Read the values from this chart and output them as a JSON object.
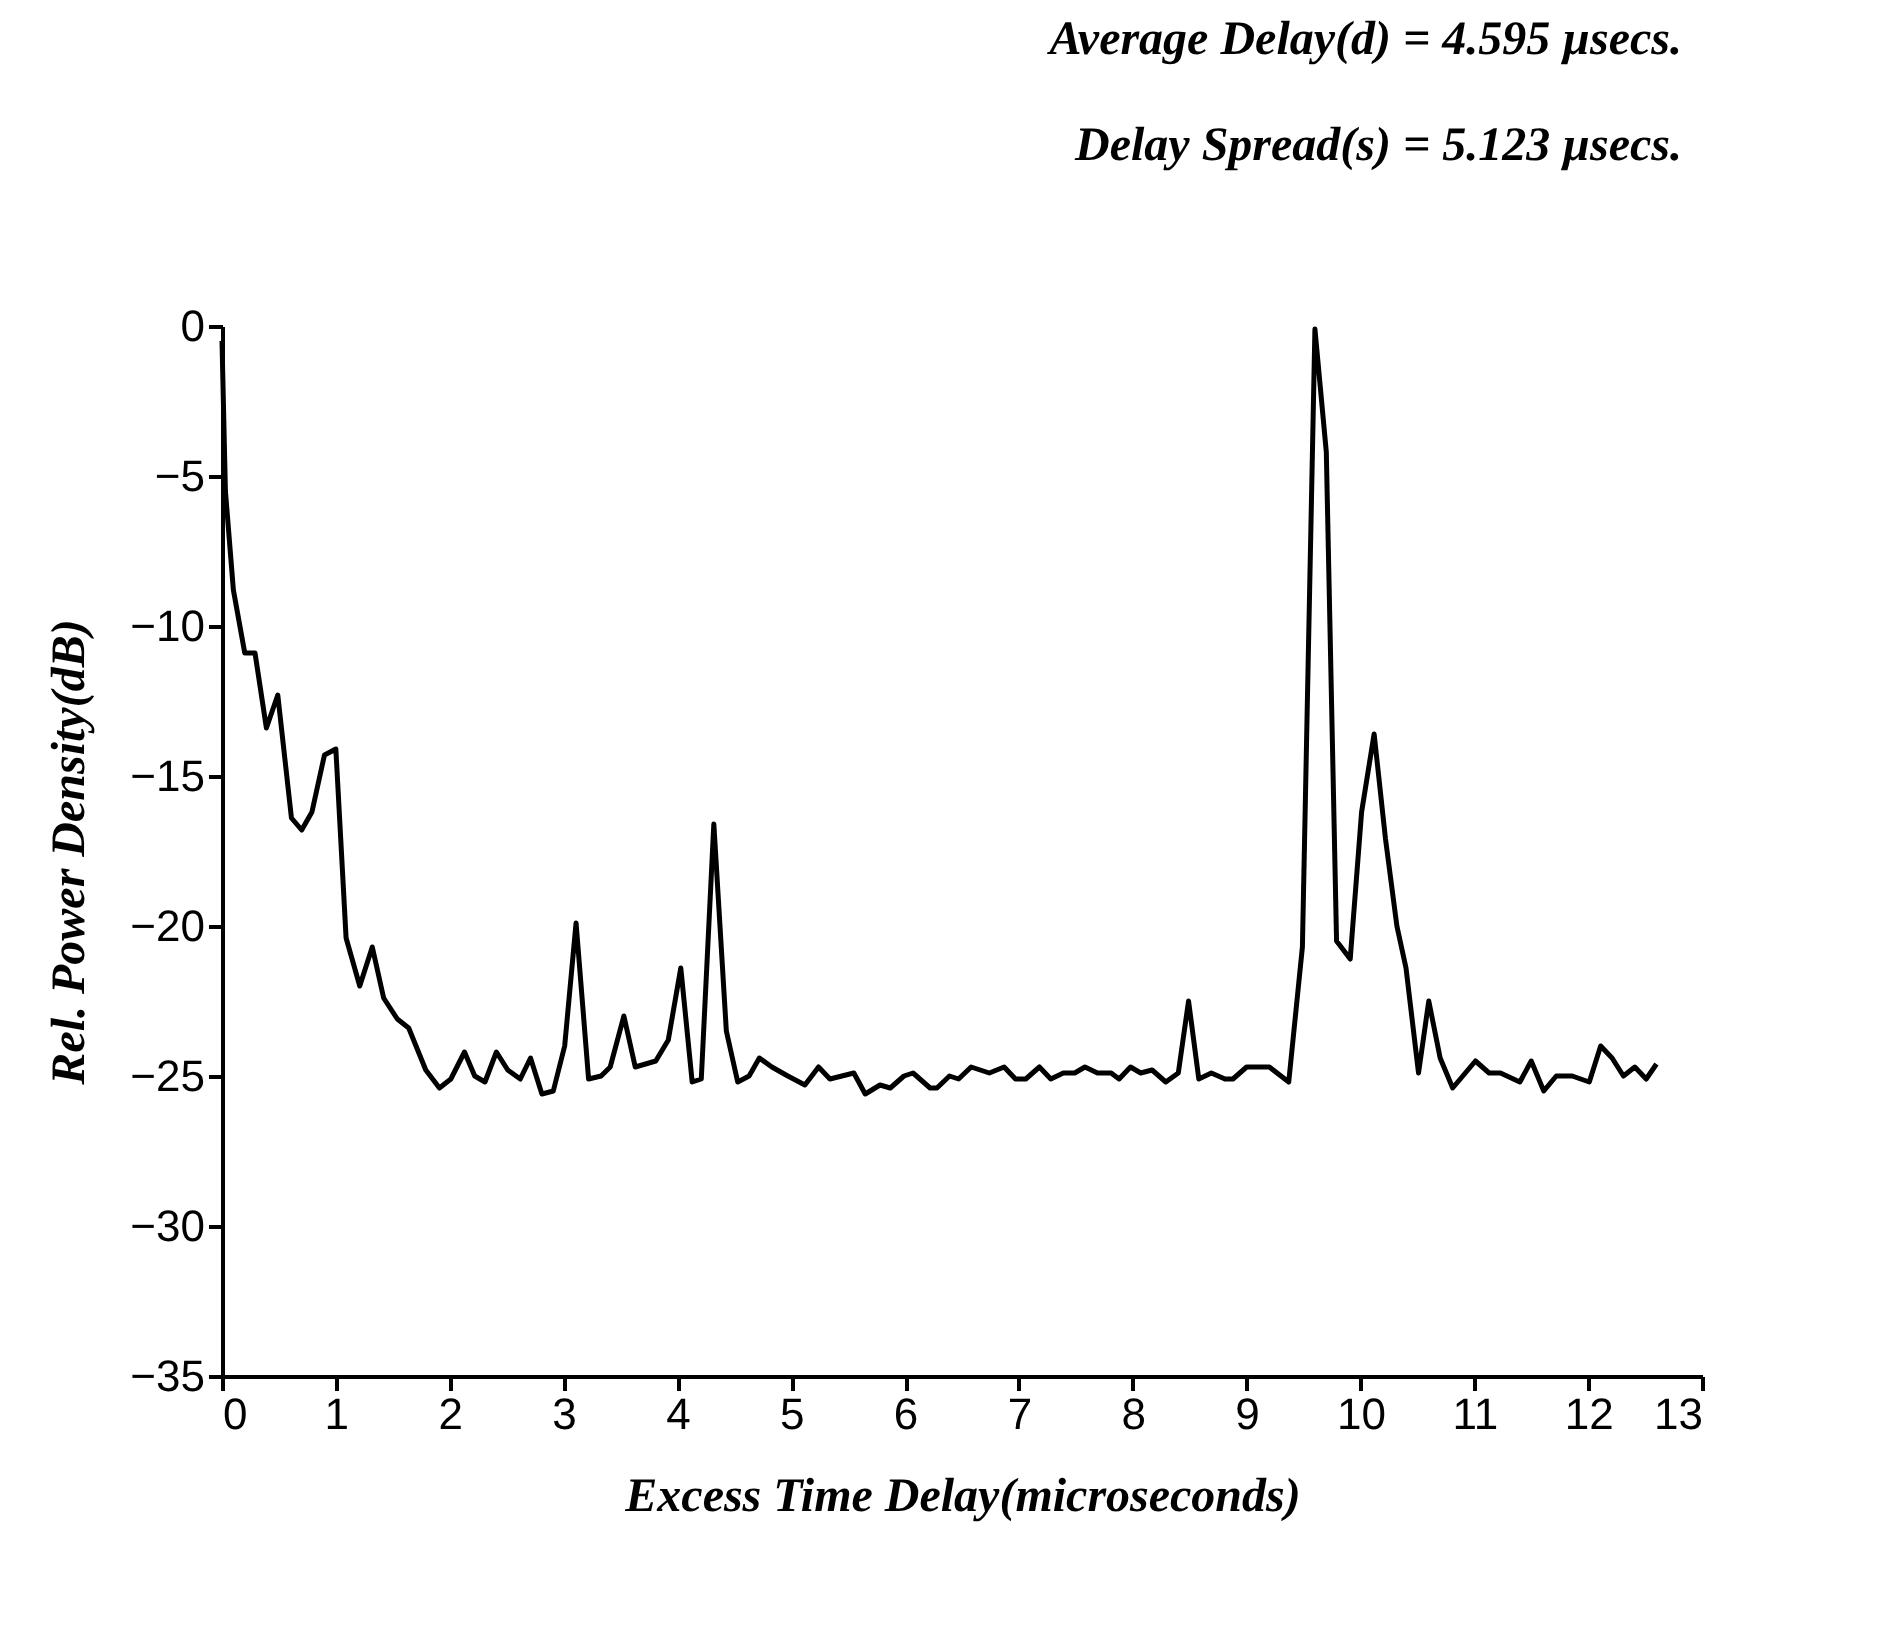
{
  "chart_data": {
    "type": "line",
    "xlabel": "Excess Time Delay(microseconds)",
    "ylabel": "Rel. Power Density(dB)",
    "annotations": [
      "Average Delay(d) = 4.595 µsecs.",
      "Delay Spread(s)  = 5.123 µsecs."
    ],
    "xlim": [
      0,
      13
    ],
    "ylim": [
      -35,
      0
    ],
    "xticks": [
      0,
      1,
      2,
      3,
      4,
      5,
      6,
      7,
      8,
      9,
      10,
      11,
      12,
      13
    ],
    "yticks": [
      0,
      -5,
      -10,
      -15,
      -20,
      -25,
      -30,
      -35
    ],
    "grid": false,
    "marker": "none",
    "line_style": "solid",
    "series": [
      {
        "color": "#000000",
        "x": [
          0,
          0.03,
          0.1,
          0.2,
          0.29,
          0.39,
          0.49,
          0.61,
          0.7,
          0.79,
          0.9,
          1.0,
          1.09,
          1.21,
          1.32,
          1.42,
          1.54,
          1.64,
          1.79,
          1.91,
          2.01,
          2.13,
          2.22,
          2.31,
          2.41,
          2.51,
          2.62,
          2.71,
          2.81,
          2.91,
          3.01,
          3.11,
          3.22,
          3.33,
          3.41,
          3.53,
          3.63,
          3.81,
          3.92,
          4.03,
          4.13,
          4.21,
          4.32,
          4.43,
          4.53,
          4.63,
          4.72,
          4.83,
          4.97,
          5.12,
          5.24,
          5.34,
          5.55,
          5.65,
          5.78,
          5.87,
          5.99,
          6.07,
          6.22,
          6.28,
          6.39,
          6.47,
          6.58,
          6.74,
          6.87,
          6.97,
          7.06,
          7.18,
          7.28,
          7.39,
          7.49,
          7.58,
          7.69,
          7.81,
          7.88,
          7.98,
          8.07,
          8.17,
          8.29,
          8.4,
          8.49,
          8.58,
          8.69,
          8.81,
          8.88,
          9.0,
          9.2,
          9.37,
          9.49,
          9.6,
          9.7,
          9.79,
          9.91,
          10.01,
          10.12,
          10.22,
          10.32,
          10.4,
          10.51,
          10.6,
          10.7,
          10.81,
          11.01,
          11.13,
          11.23,
          11.4,
          11.5,
          11.61,
          11.72,
          11.86,
          12.01,
          12.11,
          12.21,
          12.31,
          12.41,
          12.51,
          12.6
        ],
        "values": [
          -0.5,
          -5.5,
          -8.8,
          -10.9,
          -10.9,
          -13.4,
          -12.3,
          -16.4,
          -16.8,
          -16.2,
          -14.3,
          -14.1,
          -20.4,
          -22.0,
          -20.7,
          -22.4,
          -23.1,
          -23.4,
          -24.8,
          -25.4,
          -25.1,
          -24.2,
          -25.0,
          -25.2,
          -24.2,
          -24.8,
          -25.1,
          -24.4,
          -25.6,
          -25.5,
          -24.0,
          -19.9,
          -25.1,
          -25.0,
          -24.7,
          -23.0,
          -24.7,
          -24.5,
          -23.8,
          -21.4,
          -25.2,
          -25.1,
          -16.6,
          -23.5,
          -25.2,
          -25.0,
          -24.4,
          -24.7,
          -25.0,
          -25.3,
          -24.7,
          -25.1,
          -24.9,
          -25.6,
          -25.3,
          -25.4,
          -25.0,
          -24.9,
          -25.4,
          -25.4,
          -25.0,
          -25.1,
          -24.7,
          -24.9,
          -24.7,
          -25.1,
          -25.1,
          -24.7,
          -25.1,
          -24.9,
          -24.9,
          -24.7,
          -24.9,
          -24.9,
          -25.1,
          -24.7,
          -24.9,
          -24.8,
          -25.2,
          -24.9,
          -22.5,
          -25.1,
          -24.9,
          -25.1,
          -25.1,
          -24.7,
          -24.7,
          -25.2,
          -20.7,
          -0.1,
          -4.2,
          -20.5,
          -21.1,
          -16.2,
          -13.6,
          -17.1,
          -20.0,
          -21.4,
          -24.9,
          -22.5,
          -24.4,
          -25.4,
          -24.5,
          -24.9,
          -24.9,
          -25.2,
          -24.5,
          -25.5,
          -25.0,
          -25.0,
          -25.2,
          -24.0,
          -24.4,
          -25.0,
          -24.7,
          -25.1,
          -24.6
        ]
      }
    ]
  }
}
